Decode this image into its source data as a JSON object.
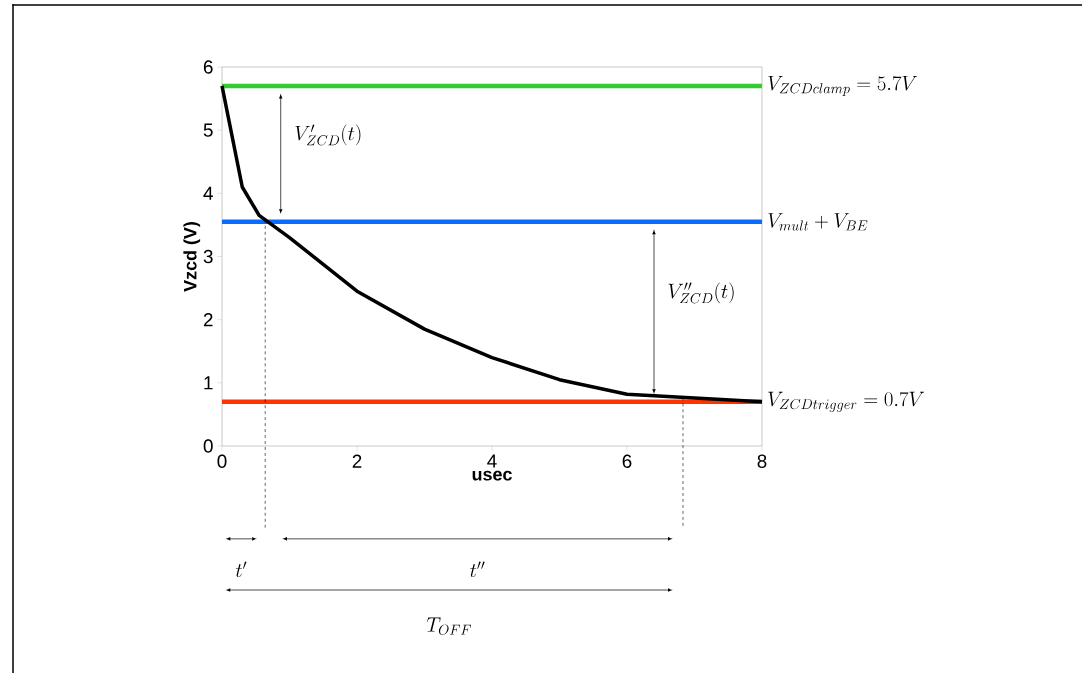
{
  "chart_data": {
    "type": "line",
    "xlabel": "usec",
    "ylabel": "Vzcd (V)",
    "x": [
      0,
      0.15,
      0.3,
      0.55,
      1,
      2,
      3,
      4,
      5,
      6,
      7,
      8
    ],
    "series": [
      {
        "color": "#000000",
        "values": [
          5.7,
          4.9,
          4.1,
          3.65,
          3.3,
          2.45,
          1.85,
          1.4,
          1.05,
          0.82,
          0.76,
          0.7
        ]
      }
    ],
    "xlim": [
      0,
      8
    ],
    "ylim": [
      0,
      6
    ],
    "xticks": [
      0,
      2,
      4,
      6,
      8
    ],
    "yticks": [
      0,
      1,
      2,
      3,
      4,
      5,
      6
    ],
    "line_style": "solid",
    "ref_lines": [
      {
        "axis": "y",
        "value": 5.7,
        "label": "V_{ZCDclamp} = 5.7V",
        "color": "#33cc33",
        "line_style": "solid"
      },
      {
        "axis": "y",
        "value": 3.55,
        "label": "V_{mult} + V_{BE}",
        "color": "#0a6cff",
        "line_style": "solid"
      },
      {
        "axis": "y",
        "value": 0.7,
        "label": "V_{ZCDtrigger} = 0.7V",
        "color": "#ff3300",
        "line_style": "solid"
      },
      {
        "axis": "x",
        "value": 0.64,
        "color": "#000000",
        "line_style": "dashed"
      },
      {
        "axis": "x",
        "value": 6.83,
        "color": "#000000",
        "line_style": "dashed"
      }
    ],
    "annotations": [
      "V'_{ZCD}(t)",
      "V''_{ZCD}(t)",
      "t'",
      "t''",
      "T_{OFF}"
    ]
  }
}
